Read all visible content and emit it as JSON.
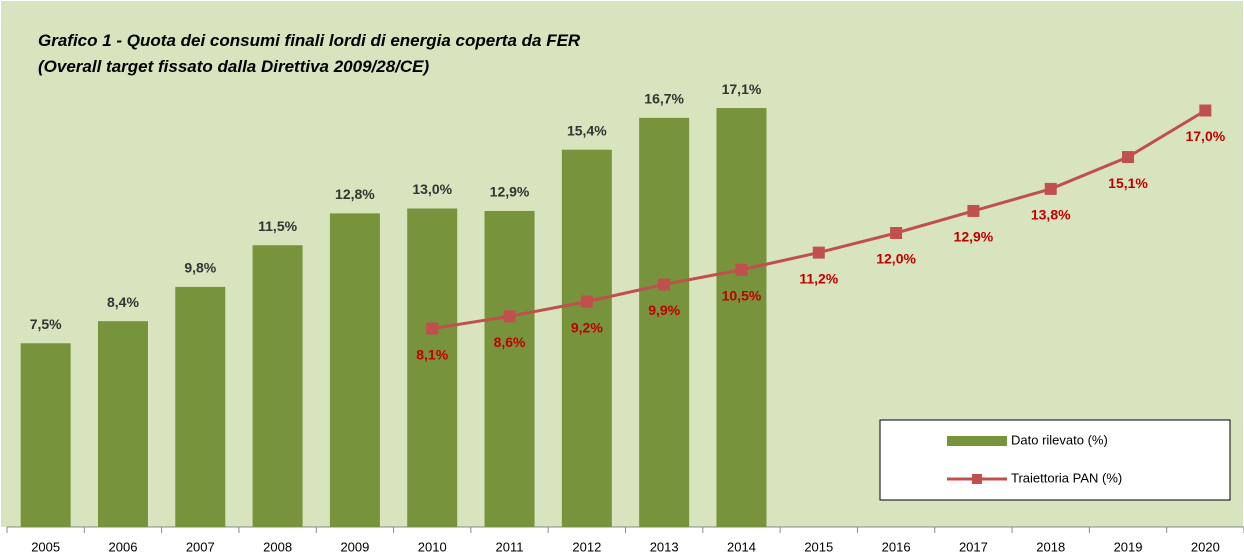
{
  "chart_data": {
    "type": "combo",
    "title": "Grafico 1 -  Quota dei consumi finali lordi di energia coperta da FER",
    "subtitle": "(Overall target fissato dalla Direttiva 2009/28/CE)",
    "categories": [
      "2005",
      "2006",
      "2007",
      "2008",
      "2009",
      "2010",
      "2011",
      "2012",
      "2013",
      "2014",
      "2015",
      "2016",
      "2017",
      "2018",
      "2019",
      "2020"
    ],
    "ylim": [
      0,
      20
    ],
    "grid": false,
    "legend": "lower right",
    "series": [
      {
        "name": "Dato rilevato (%)",
        "type": "bar",
        "color": "#77933c",
        "values": [
          7.5,
          8.4,
          9.8,
          11.5,
          12.8,
          13.0,
          12.9,
          15.4,
          16.7,
          17.1,
          null,
          null,
          null,
          null,
          null,
          null
        ],
        "value_labels": [
          "7,5%",
          "8,4%",
          "9,8%",
          "11,5%",
          "12,8%",
          "13,0%",
          "12,9%",
          "15,4%",
          "16,7%",
          "17,1%",
          null,
          null,
          null,
          null,
          null,
          null
        ],
        "label_color": "#333333"
      },
      {
        "name": "Traiettoria PAN (%)",
        "type": "line",
        "color": "#c0504d",
        "values": [
          null,
          null,
          null,
          null,
          null,
          8.1,
          8.6,
          9.2,
          9.9,
          10.5,
          11.2,
          12.0,
          12.9,
          13.8,
          15.1,
          17.0
        ],
        "value_labels": [
          null,
          null,
          null,
          null,
          null,
          "8,1%",
          "8,6%",
          "9,2%",
          "9,9%",
          "10,5%",
          "11,2%",
          "12,0%",
          "12,9%",
          "13,8%",
          "15,1%",
          "17,0%"
        ],
        "label_color": "#c00000"
      }
    ]
  }
}
